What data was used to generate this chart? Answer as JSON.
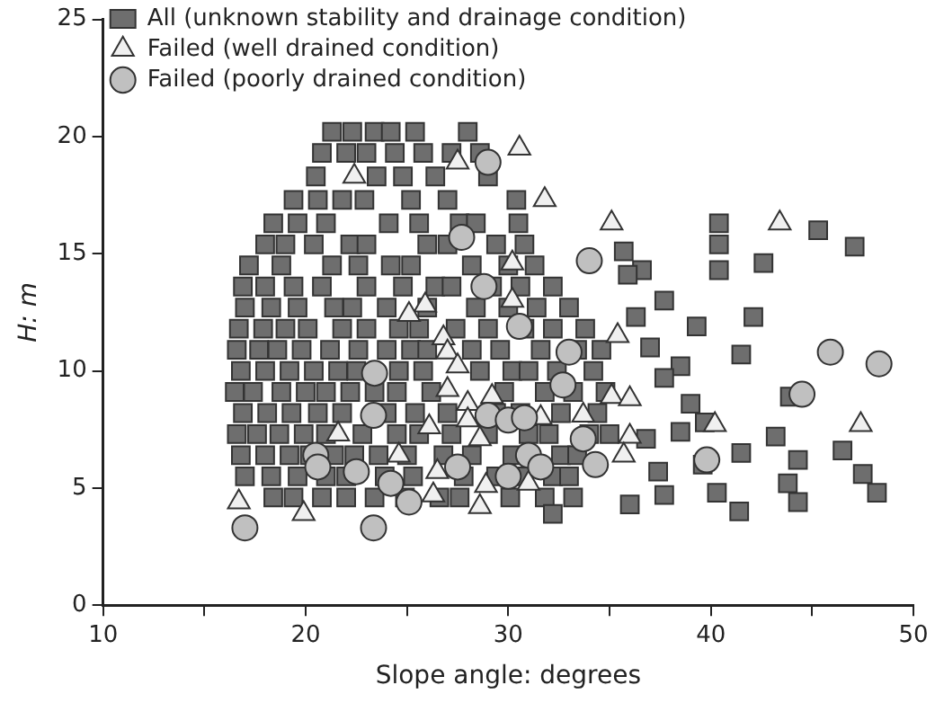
{
  "chart_data": {
    "type": "scatter",
    "xlabel": "Slope angle: degrees",
    "ylabel": "H: m",
    "xlim": [
      10,
      50
    ],
    "ylim": [
      0,
      25
    ],
    "xticks": [
      10,
      20,
      30,
      40,
      50
    ],
    "yticks": [
      0,
      5,
      10,
      15,
      20,
      25
    ],
    "grid": false,
    "legend": "top left",
    "series": [
      {
        "name": "All (unknown stability and drainage condition)",
        "color": "#6e6e6e",
        "marker": "square",
        "x": [
          21.3,
          22.3,
          23.4,
          24.2,
          25.4,
          28.0,
          20.8,
          22.0,
          23.0,
          24.4,
          25.8,
          27.2,
          28.6,
          20.5,
          23.5,
          24.8,
          26.4,
          29.0,
          19.4,
          20.6,
          21.8,
          22.9,
          25.2,
          27.0,
          30.4,
          18.4,
          19.6,
          21.0,
          24.1,
          25.6,
          27.6,
          28.4,
          30.5,
          18.0,
          19.0,
          20.4,
          22.2,
          23.0,
          26.0,
          27.0,
          29.4,
          30.8,
          17.2,
          18.8,
          21.3,
          22.6,
          24.2,
          25.2,
          28.2,
          30.0,
          31.3,
          16.9,
          18.0,
          19.4,
          20.8,
          23.0,
          24.8,
          26.4,
          27.2,
          29.2,
          30.6,
          32.2,
          17.0,
          18.3,
          19.6,
          21.4,
          22.3,
          24.0,
          26.0,
          28.4,
          30.0,
          31.4,
          33.0,
          16.7,
          17.9,
          19.0,
          20.1,
          21.8,
          23.0,
          24.6,
          25.6,
          27.4,
          29.0,
          30.8,
          32.2,
          33.8,
          16.6,
          17.7,
          18.6,
          19.8,
          21.2,
          22.6,
          24.0,
          25.2,
          26.0,
          28.2,
          29.6,
          31.6,
          33.4,
          34.6,
          16.8,
          18.0,
          19.2,
          20.4,
          21.6,
          22.5,
          24.6,
          25.8,
          28.6,
          30.2,
          31.0,
          32.4,
          34.2,
          16.5,
          17.4,
          18.8,
          20.0,
          21.0,
          22.2,
          23.4,
          24.5,
          26.2,
          29.8,
          31.8,
          33.2,
          34.8,
          16.9,
          18.1,
          19.3,
          20.6,
          21.8,
          24.0,
          25.4,
          27.0,
          29.4,
          30.6,
          32.6,
          34.4,
          16.6,
          17.6,
          18.7,
          19.9,
          21.0,
          22.8,
          24.5,
          25.6,
          27.2,
          29.0,
          31.0,
          32.0,
          34.0,
          35.0,
          16.8,
          18.0,
          19.2,
          20.2,
          21.4,
          22.4,
          23.6,
          25.0,
          26.8,
          28.2,
          30.2,
          32.6,
          33.4,
          17.0,
          18.3,
          19.6,
          21.0,
          22.0,
          23.9,
          25.3,
          27.8,
          29.4,
          30.6,
          32.2,
          33.0,
          18.4,
          19.4,
          20.8,
          22.0,
          23.4,
          24.9,
          26.6,
          27.6,
          30.1,
          31.8,
          33.2,
          32.2,
          40.4,
          40.4,
          40.4,
          45.3,
          47.1,
          42.6,
          35.7,
          36.6,
          35.9,
          37.7,
          36.3,
          39.3,
          42.1,
          37.0,
          41.5,
          38.5,
          37.7,
          43.9,
          39.0,
          39.7,
          38.5,
          36.8,
          41.5,
          43.2,
          44.3,
          46.5,
          37.4,
          39.6,
          43.8,
          47.5,
          40.3,
          37.7,
          36.0,
          41.4,
          44.3,
          48.2
        ],
        "values": [
          20.2,
          20.2,
          20.2,
          20.2,
          20.2,
          20.2,
          19.3,
          19.3,
          19.3,
          19.3,
          19.3,
          19.3,
          19.3,
          18.3,
          18.3,
          18.3,
          18.3,
          18.3,
          17.3,
          17.3,
          17.3,
          17.3,
          17.3,
          17.3,
          17.3,
          16.3,
          16.3,
          16.3,
          16.3,
          16.3,
          16.3,
          16.3,
          16.3,
          15.4,
          15.4,
          15.4,
          15.4,
          15.4,
          15.4,
          15.4,
          15.4,
          15.4,
          14.5,
          14.5,
          14.5,
          14.5,
          14.5,
          14.5,
          14.5,
          14.5,
          14.5,
          13.6,
          13.6,
          13.6,
          13.6,
          13.6,
          13.6,
          13.6,
          13.6,
          13.6,
          13.6,
          13.6,
          12.7,
          12.7,
          12.7,
          12.7,
          12.7,
          12.7,
          12.7,
          12.7,
          12.7,
          12.7,
          12.7,
          11.8,
          11.8,
          11.8,
          11.8,
          11.8,
          11.8,
          11.8,
          11.8,
          11.8,
          11.8,
          11.8,
          11.8,
          11.8,
          10.9,
          10.9,
          10.9,
          10.9,
          10.9,
          10.9,
          10.9,
          10.9,
          10.9,
          10.9,
          10.9,
          10.9,
          10.9,
          10.9,
          10.0,
          10.0,
          10.0,
          10.0,
          10.0,
          10.0,
          10.0,
          10.0,
          10.0,
          10.0,
          10.0,
          10.0,
          10.0,
          9.1,
          9.1,
          9.1,
          9.1,
          9.1,
          9.1,
          9.1,
          9.1,
          9.1,
          9.1,
          9.1,
          9.1,
          9.1,
          8.2,
          8.2,
          8.2,
          8.2,
          8.2,
          8.2,
          8.2,
          8.2,
          8.2,
          8.2,
          8.2,
          8.2,
          7.3,
          7.3,
          7.3,
          7.3,
          7.3,
          7.3,
          7.3,
          7.3,
          7.3,
          7.3,
          7.3,
          7.3,
          7.3,
          7.3,
          6.4,
          6.4,
          6.4,
          6.4,
          6.4,
          6.4,
          6.4,
          6.4,
          6.4,
          6.4,
          6.4,
          6.4,
          6.4,
          5.5,
          5.5,
          5.5,
          5.5,
          5.5,
          5.5,
          5.5,
          5.5,
          5.5,
          5.5,
          5.5,
          5.5,
          4.6,
          4.6,
          4.6,
          4.6,
          4.6,
          4.6,
          4.6,
          4.6,
          4.6,
          4.6,
          4.6,
          3.9,
          16.3,
          15.4,
          14.3,
          16.0,
          15.3,
          14.6,
          15.1,
          14.3,
          14.1,
          13.0,
          12.3,
          11.9,
          12.3,
          11.0,
          10.7,
          10.2,
          9.7,
          8.9,
          8.6,
          7.8,
          7.4,
          7.1,
          6.5,
          7.2,
          6.2,
          6.6,
          5.7,
          6.0,
          5.2,
          5.6,
          4.8,
          4.7,
          4.3,
          4.0,
          4.4,
          4.8
        ]
      },
      {
        "name": "Failed (well drained condition)",
        "color": "#f0f0f0",
        "marker": "triangle",
        "x": [
          43.4,
          35.1,
          35.4,
          35.1,
          36.0,
          40.2,
          47.4,
          36.0,
          35.7,
          27.5,
          30.55,
          31.8,
          30.2,
          30.2,
          25.9,
          25.1,
          26.8,
          27.0,
          27.5,
          27.0,
          28.0,
          29.2,
          26.1,
          28.0,
          28.6,
          31.6,
          33.7,
          24.6,
          26.5,
          28.9,
          28.6,
          31.0,
          26.3,
          22.4,
          21.6,
          16.7,
          19.9
        ],
        "values": [
          16.3,
          16.3,
          11.5,
          8.9,
          8.8,
          7.7,
          7.7,
          7.2,
          6.4,
          18.9,
          19.5,
          17.3,
          14.6,
          13.0,
          12.8,
          12.4,
          11.4,
          10.8,
          10.2,
          9.2,
          8.6,
          8.9,
          7.6,
          7.9,
          7.1,
          8.0,
          8.1,
          6.4,
          5.7,
          5.1,
          4.2,
          5.2,
          4.7,
          18.3,
          7.3,
          4.4,
          3.9
        ]
      },
      {
        "name": "Failed (poorly drained condition)",
        "color": "#c0c0c0",
        "marker": "circle",
        "x": [
          45.9,
          48.3,
          44.5,
          39.8,
          29.0,
          27.7,
          34.0,
          28.8,
          30.55,
          33.0,
          32.7,
          23.4,
          23.35,
          29.0,
          30.0,
          30.8,
          33.7,
          27.5,
          30.0,
          31.0,
          31.6,
          34.3,
          22.5,
          24.2,
          25.1,
          23.35,
          20.5,
          20.6,
          17.0
        ],
        "values": [
          10.8,
          10.3,
          9.0,
          6.2,
          18.9,
          15.7,
          14.7,
          13.6,
          11.9,
          10.8,
          9.4,
          9.9,
          8.1,
          8.1,
          7.9,
          8.0,
          7.1,
          5.9,
          5.5,
          6.4,
          5.9,
          6.0,
          5.7,
          5.2,
          4.4,
          3.3,
          6.4,
          5.9,
          3.3
        ]
      }
    ]
  }
}
